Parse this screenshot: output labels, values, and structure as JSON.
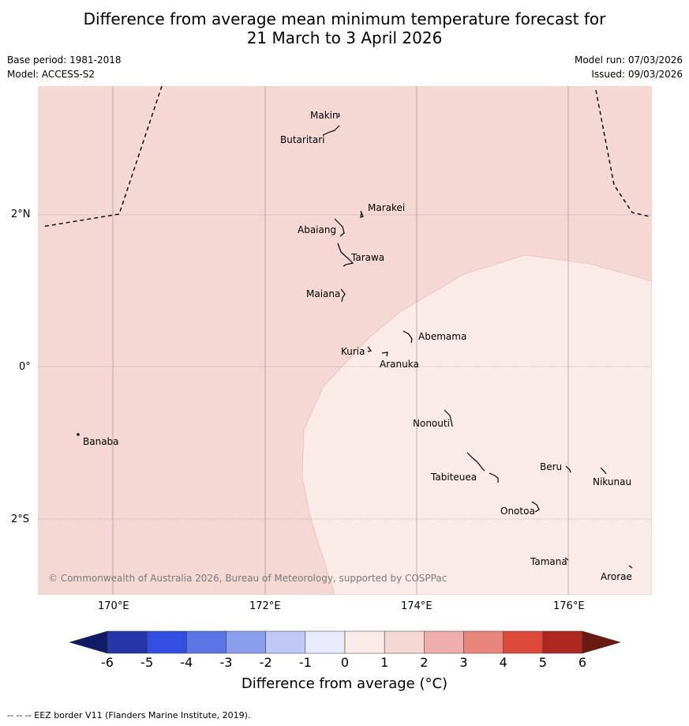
{
  "title_line1": "Difference from average mean minimum temperature forecast for",
  "title_line2": "21 March to 3 April 2026",
  "base_period": "Base period: 1981-2018",
  "model": "Model: ACCESS-S2",
  "model_run": "Model run: 07/03/2026",
  "issued": "Issued: 09/03/2026",
  "colors": {
    "band_0_1": "#fbebe8",
    "band_1_2": "#f5d7d4",
    "eez": "#000000",
    "grid": "#8a8a8a"
  },
  "places": {
    "makin": "Makin",
    "butaritari": "Butaritari",
    "marakei": "Marakei",
    "abaiang": "Abaiang",
    "tarawa": "Tarawa",
    "maiana": "Maiana",
    "abemama": "Abemama",
    "kuria": "Kuria",
    "aranuka": "Aranuka",
    "banaba": "Banaba",
    "nonouti": "Nonouti",
    "tabiteuea": "Tabiteuea",
    "beru": "Beru",
    "nikunau": "Nikunau",
    "onotoa": "Onotoa",
    "tamana": "Tamana",
    "arorae": "Arorae"
  },
  "copyright": "© Commonwealth of Australia 2026, Bureau of Meteorology, supported by COSPPac",
  "lat_labels": {
    "n2": "2°N",
    "eq": "0°",
    "s2": "2°S"
  },
  "lon_labels": {
    "e170": "170°E",
    "e172": "172°E",
    "e174": "174°E",
    "e176": "176°E"
  },
  "colorbar": {
    "label": "Difference from average (°C)",
    "ticks": [
      "-6",
      "-5",
      "-4",
      "-3",
      "-2",
      "-1",
      "0",
      "1",
      "2",
      "3",
      "4",
      "5",
      "6"
    ],
    "colors": [
      "#2536a8",
      "#334fe2",
      "#5b74e6",
      "#8a9ded",
      "#c1c8f6",
      "#e8ebfb",
      "#fbebe8",
      "#f5d7d4",
      "#efaeab",
      "#e8867e",
      "#dc4a3c",
      "#ae2721"
    ],
    "under_color": "#101a66",
    "over_color": "#6b1a12"
  },
  "footnote": "--  --  -- EEZ border V11 (Flanders Marine Institute, 2019)."
}
